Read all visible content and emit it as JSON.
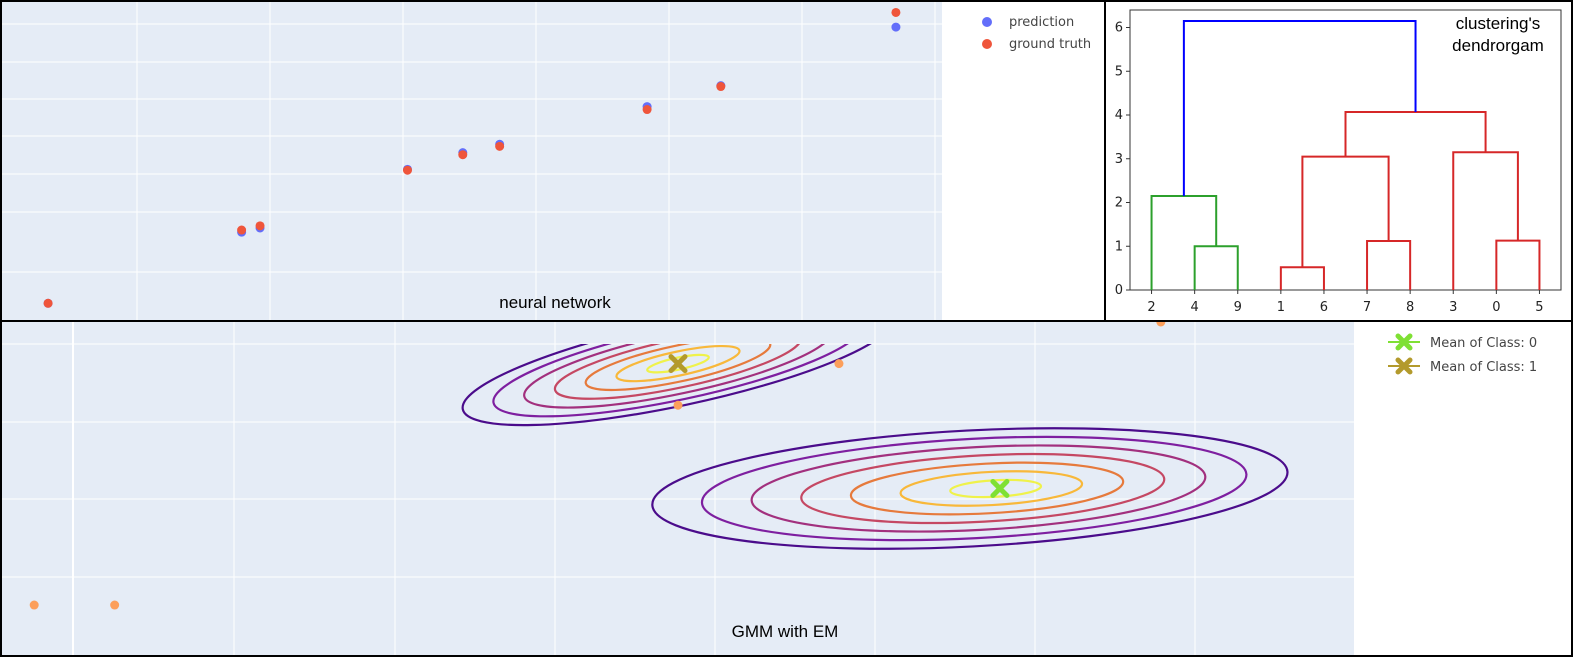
{
  "chart_data": [
    {
      "type": "scatter",
      "caption": "neural network",
      "legend_position": "top-right",
      "grid": true,
      "series": [
        {
          "name": "prediction",
          "color": "#636efa",
          "points": [
            [
              0.3,
              0.1
            ],
            [
              2.4,
              1.8
            ],
            [
              2.6,
              1.9
            ],
            [
              4.2,
              3.3
            ],
            [
              4.8,
              3.7
            ],
            [
              5.2,
              3.9
            ],
            [
              6.8,
              4.8
            ],
            [
              7.6,
              5.3
            ],
            [
              9.5,
              6.7
            ]
          ]
        },
        {
          "name": "ground truth",
          "color": "#ef553b",
          "points": [
            [
              0.3,
              0.1
            ],
            [
              2.4,
              1.85
            ],
            [
              2.6,
              1.95
            ],
            [
              4.2,
              3.28
            ],
            [
              4.8,
              3.65
            ],
            [
              5.2,
              3.85
            ],
            [
              6.8,
              4.73
            ],
            [
              7.6,
              5.28
            ],
            [
              9.5,
              7.05
            ]
          ]
        }
      ],
      "xlim": [
        -0.2,
        10
      ],
      "ylim": [
        -0.3,
        7.3
      ]
    },
    {
      "type": "dendrogram",
      "title": "clustering's\ndendrorgam",
      "leaves": [
        "2",
        "4",
        "9",
        "1",
        "6",
        "7",
        "8",
        "3",
        "0",
        "5"
      ],
      "yticks": [
        "0",
        "1",
        "2",
        "3",
        "4",
        "5",
        "6"
      ],
      "ylim": [
        0,
        6.4
      ],
      "merges": [
        {
          "left": "4",
          "right": "9",
          "height": 1.0,
          "color": "#2ca02c"
        },
        {
          "left": "2",
          "right": "(4,9)",
          "height": 2.15,
          "color": "#2ca02c"
        },
        {
          "left": "1",
          "right": "6",
          "height": 0.52,
          "color": "#d62728"
        },
        {
          "left": "7",
          "right": "8",
          "height": 1.12,
          "color": "#d62728"
        },
        {
          "left": "(1,6)",
          "right": "(7,8)",
          "height": 3.05,
          "color": "#d62728"
        },
        {
          "left": "0",
          "right": "5",
          "height": 1.13,
          "color": "#d62728"
        },
        {
          "left": "3",
          "right": "(0,5)",
          "height": 3.15,
          "color": "#d62728"
        },
        {
          "left": "(1,6,7,8)",
          "right": "(3,0,5)",
          "height": 4.07,
          "color": "#d62728"
        },
        {
          "left": "(2,4,9)",
          "right": "(1,6,7,8,3,0,5)",
          "height": 6.15,
          "color": "#0000ff"
        }
      ]
    },
    {
      "type": "contour",
      "caption": "GMM with EM",
      "legend_position": "top-right",
      "grid": true,
      "xlim": [
        -0.2,
        8.2
      ],
      "ylim": [
        0.2,
        4.2
      ],
      "points": {
        "color": "#fc9f5b",
        "x": [
          0.0,
          0.5,
          4.0,
          5.0,
          7.0
        ],
        "y": [
          0.8,
          0.8,
          3.2,
          3.7,
          4.2
        ]
      },
      "components": [
        {
          "name": "Mean of Class: 0",
          "mean": [
            6.0,
            2.2
          ],
          "marker_color": "#7fe034"
        },
        {
          "name": "Mean of Class: 1",
          "mean": [
            4.0,
            3.7
          ],
          "marker_color": "#b39a2c"
        }
      ],
      "contour_colors": [
        "#4b0c8b",
        "#7e1fa0",
        "#a2307e",
        "#c54863",
        "#e67a3c",
        "#f8b83a",
        "#eff24a"
      ]
    }
  ]
}
